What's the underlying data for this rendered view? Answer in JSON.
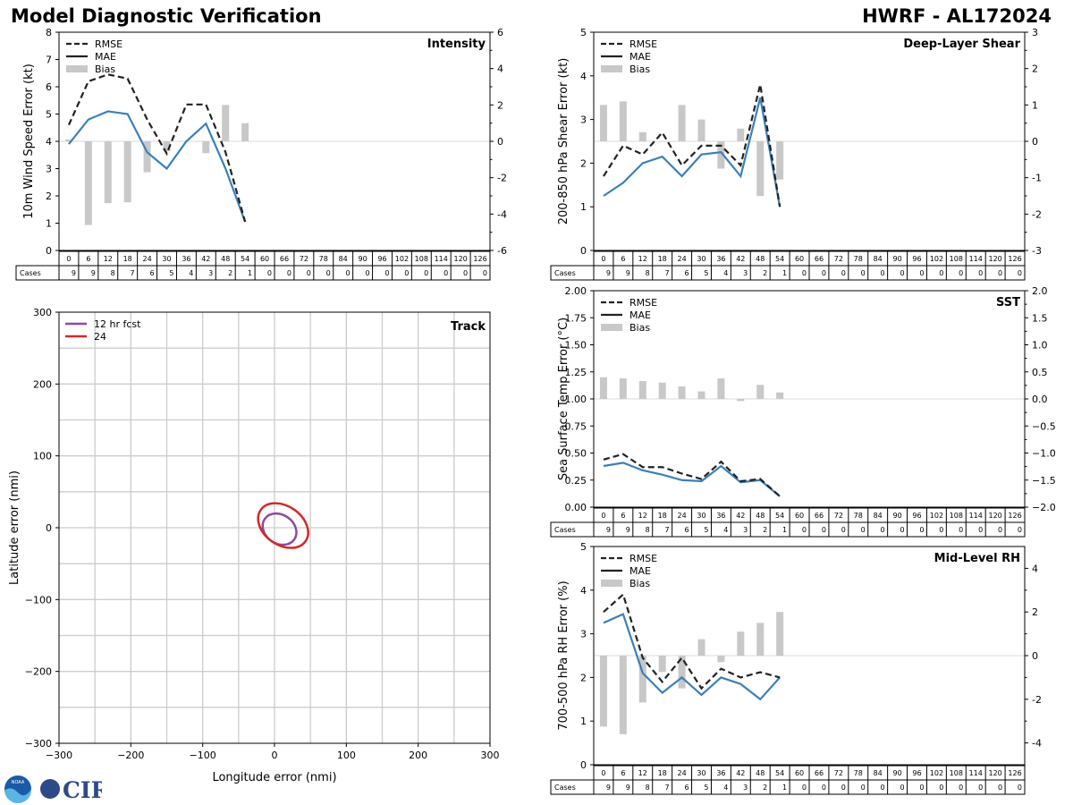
{
  "header": {
    "main_title": "Model Diagnostic Verification",
    "storm_title": "HWRF - AL172024"
  },
  "logos": {
    "noaa": "NOAA",
    "cira": "CIRA"
  },
  "colors": {
    "rmse": "#222222",
    "mae": "#3b7fb9",
    "bias": "#c8c8c8",
    "ring12": "#8e48a8",
    "ring24": "#d62828",
    "grid": "#cccccc"
  },
  "lead_hours": [
    "0",
    "6",
    "12",
    "18",
    "24",
    "30",
    "36",
    "42",
    "48",
    "54",
    "60",
    "66",
    "72",
    "78",
    "84",
    "90",
    "96",
    "102",
    "108",
    "114",
    "120",
    "126"
  ],
  "cases_label": "Cases",
  "cases": [
    9,
    9,
    8,
    7,
    6,
    5,
    4,
    3,
    2,
    1,
    0,
    0,
    0,
    0,
    0,
    0,
    0,
    0,
    0,
    0,
    0,
    0
  ],
  "chart_data": [
    {
      "id": "intensity",
      "type": "line",
      "title": "Intensity",
      "ylabel": "10m Wind Speed Error (kt)",
      "ylim": [
        0,
        8
      ],
      "yticks": [
        0,
        1,
        2,
        3,
        4,
        5,
        6,
        7,
        8
      ],
      "y2lim": [
        -6,
        6
      ],
      "y2ticks": [
        -6,
        -4,
        -2,
        0,
        2,
        4,
        6
      ],
      "legend": [
        "RMSE",
        "MAE",
        "Bias"
      ],
      "series": [
        {
          "name": "RMSE",
          "values": [
            4.6,
            6.2,
            6.45,
            6.3,
            4.8,
            3.55,
            5.35,
            5.35,
            3.6,
            1.05
          ]
        },
        {
          "name": "MAE",
          "values": [
            3.9,
            4.8,
            5.1,
            5.0,
            3.6,
            3.0,
            4.0,
            4.65,
            3.0,
            1.05
          ]
        },
        {
          "name": "Bias",
          "values": [
            0.1,
            -4.6,
            -3.4,
            -3.35,
            -1.7,
            -0.55,
            0,
            -0.65,
            2.0,
            1.0
          ]
        }
      ]
    },
    {
      "id": "shear",
      "type": "line",
      "title": "Deep-Layer Shear",
      "ylabel": "200-850 hPa Shear Error (kt)",
      "ylim": [
        0,
        5
      ],
      "yticks": [
        0,
        1,
        2,
        3,
        4,
        5
      ],
      "y2lim": [
        -3,
        3
      ],
      "y2ticks": [
        -3,
        -2,
        -1,
        0,
        1,
        2,
        3
      ],
      "legend": [
        "RMSE",
        "MAE",
        "Bias"
      ],
      "series": [
        {
          "name": "RMSE",
          "values": [
            1.7,
            2.4,
            2.2,
            2.7,
            1.95,
            2.4,
            2.4,
            1.95,
            3.8,
            1.0
          ]
        },
        {
          "name": "MAE",
          "values": [
            1.25,
            1.55,
            2.0,
            2.15,
            1.7,
            2.2,
            2.25,
            1.7,
            3.5,
            1.0
          ]
        },
        {
          "name": "Bias",
          "values": [
            1.0,
            1.1,
            0.25,
            0,
            1.0,
            0.6,
            -0.75,
            0.35,
            -1.5,
            -1.05
          ]
        }
      ]
    },
    {
      "id": "sst",
      "type": "line",
      "title": "SST",
      "ylabel": "Sea Surface Temp Error (°C)",
      "ylim": [
        0,
        2
      ],
      "yticks": [
        "0.00",
        "0.25",
        "0.50",
        "0.75",
        "1.00",
        "1.25",
        "1.50",
        "1.75",
        "2.00"
      ],
      "y2lim": [
        -2,
        2
      ],
      "y2ticks": [
        "−2.0",
        "−1.5",
        "−1.0",
        "−0.5",
        "0.0",
        "0.5",
        "1.0",
        "1.5",
        "2.0"
      ],
      "legend": [
        "RMSE",
        "MAE",
        "Bias"
      ],
      "series": [
        {
          "name": "RMSE",
          "values": [
            0.44,
            0.49,
            0.37,
            0.37,
            0.31,
            0.26,
            0.42,
            0.24,
            0.26,
            0.1
          ]
        },
        {
          "name": "MAE",
          "values": [
            0.38,
            0.41,
            0.34,
            0.3,
            0.25,
            0.24,
            0.38,
            0.23,
            0.25,
            0.1
          ]
        },
        {
          "name": "Bias",
          "values": [
            0.4,
            0.38,
            0.33,
            0.3,
            0.23,
            0.14,
            0.38,
            -0.04,
            0.26,
            0.12
          ]
        }
      ]
    },
    {
      "id": "rh",
      "type": "line",
      "title": "Mid-Level RH",
      "ylabel": "700-500 hPa RH Error (%)",
      "ylim": [
        0,
        5
      ],
      "yticks": [
        0,
        1,
        2,
        3,
        4,
        5
      ],
      "y2lim": [
        -5,
        5
      ],
      "y2ticks": [
        -4,
        -2,
        0,
        2,
        4
      ],
      "legend": [
        "RMSE",
        "MAE",
        "Bias"
      ],
      "series": [
        {
          "name": "RMSE",
          "values": [
            3.5,
            3.9,
            2.45,
            1.9,
            2.45,
            1.75,
            2.2,
            2.0,
            2.12,
            2.0
          ]
        },
        {
          "name": "MAE",
          "values": [
            3.25,
            3.45,
            2.1,
            1.65,
            2.0,
            1.6,
            2.0,
            1.85,
            1.5,
            2.0
          ]
        },
        {
          "name": "Bias",
          "values": [
            -3.25,
            -3.6,
            -2.15,
            -0.75,
            -1.5,
            0.75,
            -0.3,
            1.1,
            1.5,
            2.0
          ]
        }
      ]
    },
    {
      "id": "track",
      "type": "scatter",
      "title": "Track",
      "xlabel": "Longitude error (nmi)",
      "ylabel": "Latitude error (nmi)",
      "xlim": [
        -300,
        300
      ],
      "ylim": [
        -300,
        300
      ],
      "xticks": [
        "−300",
        "−200",
        "−100",
        "0",
        "100",
        "200",
        "300"
      ],
      "yticks": [
        "−300",
        "−200",
        "−100",
        "0",
        "100",
        "200",
        "300"
      ],
      "legend": [
        "12 hr fcst",
        "24"
      ],
      "ellipses": [
        {
          "name": "12 hr fcst",
          "cx": 7,
          "cy": -2,
          "rx": 25,
          "ry": 20,
          "angle_deg": -35
        },
        {
          "name": "24",
          "cx": 12,
          "cy": 3,
          "rx": 38,
          "ry": 27,
          "angle_deg": -35
        }
      ]
    }
  ]
}
